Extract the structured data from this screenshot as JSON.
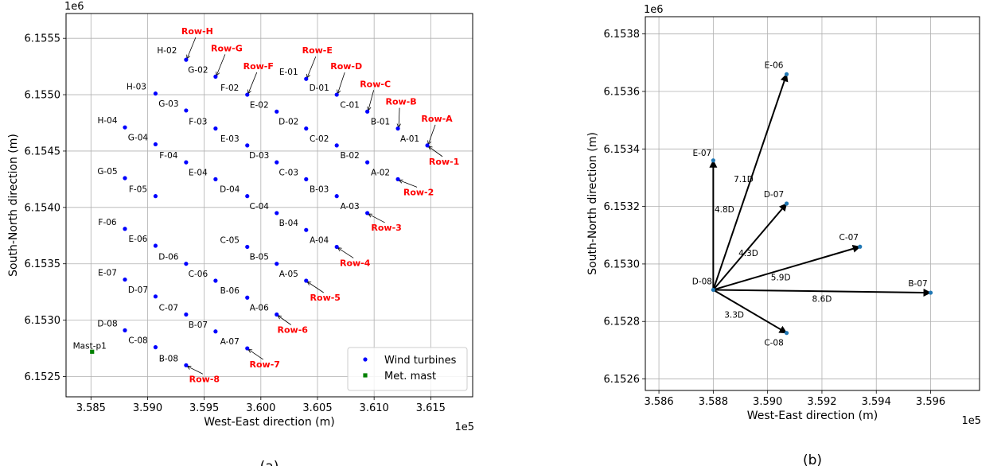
{
  "chart_data": [
    {
      "type": "scatter",
      "panel_label": "(a)",
      "xlabel": "West-East direction (m)",
      "ylabel": "South-North direction (m)",
      "x_offset_label": "1e5",
      "y_offset_label": "1e6",
      "xlim": [
        3.5828,
        3.6187
      ],
      "ylim": [
        6.15232,
        6.15572
      ],
      "xticks": [
        3.585,
        3.59,
        3.595,
        3.6,
        3.605,
        3.61,
        3.615
      ],
      "xtick_labels": [
        "3.585",
        "3.590",
        "3.595",
        "3.600",
        "3.605",
        "3.610",
        "3.615"
      ],
      "yticks": [
        6.1525,
        6.153,
        6.1535,
        6.154,
        6.1545,
        6.155,
        6.1555
      ],
      "ytick_labels": [
        "6.1525",
        "6.1530",
        "6.1535",
        "6.1540",
        "6.1545",
        "6.1550",
        "6.1555"
      ],
      "grid": true,
      "legend_position": "bottom-right",
      "legend": [
        {
          "label": "Wind turbines",
          "color": "#0000ff",
          "marker": "circle"
        },
        {
          "label": "Met. mast",
          "color": "#008000",
          "marker": "square"
        }
      ],
      "series": [
        {
          "name": "Wind turbines",
          "color": "#0000ff",
          "points": [
            {
              "label": "A-01",
              "x": 3.6147,
              "y": 6.15455
            },
            {
              "label": "A-02",
              "x": 3.6121,
              "y": 6.15425
            },
            {
              "label": "A-03",
              "x": 3.6094,
              "y": 6.15395
            },
            {
              "label": "A-04",
              "x": 3.6067,
              "y": 6.15365
            },
            {
              "label": "A-05",
              "x": 3.604,
              "y": 6.15335
            },
            {
              "label": "A-06",
              "x": 3.6014,
              "y": 6.15305
            },
            {
              "label": "A-07",
              "x": 3.5988,
              "y": 6.15275
            },
            {
              "label": "B-01",
              "x": 3.6121,
              "y": 6.1547
            },
            {
              "label": "B-02",
              "x": 3.6094,
              "y": 6.1544
            },
            {
              "label": "B-03",
              "x": 3.6067,
              "y": 6.1541
            },
            {
              "label": "B-04",
              "x": 3.604,
              "y": 6.1538
            },
            {
              "label": "B-05",
              "x": 3.6014,
              "y": 6.1535
            },
            {
              "label": "B-06",
              "x": 3.5988,
              "y": 6.1532
            },
            {
              "label": "B-07",
              "x": 3.596,
              "y": 6.1529
            },
            {
              "label": "B-08",
              "x": 3.5934,
              "y": 6.1526
            },
            {
              "label": "C-01",
              "x": 3.6094,
              "y": 6.15485
            },
            {
              "label": "C-02",
              "x": 3.6067,
              "y": 6.15455
            },
            {
              "label": "C-03",
              "x": 3.604,
              "y": 6.15425
            },
            {
              "label": "C-04",
              "x": 3.6014,
              "y": 6.15395
            },
            {
              "label": "C-05",
              "x": 3.5988,
              "y": 6.15365
            },
            {
              "label": "C-06",
              "x": 3.596,
              "y": 6.15335
            },
            {
              "label": "C-07",
              "x": 3.5934,
              "y": 6.15305
            },
            {
              "label": "C-08",
              "x": 3.5907,
              "y": 6.15276
            },
            {
              "label": "D-01",
              "x": 3.6067,
              "y": 6.155
            },
            {
              "label": "D-02",
              "x": 3.604,
              "y": 6.1547
            },
            {
              "label": "D-03",
              "x": 3.6014,
              "y": 6.1544
            },
            {
              "label": "D-04",
              "x": 3.5988,
              "y": 6.1541
            },
            {
              "label": "D-06",
              "x": 3.5934,
              "y": 6.1535
            },
            {
              "label": "D-07",
              "x": 3.5907,
              "y": 6.15321
            },
            {
              "label": "D-08",
              "x": 3.588,
              "y": 6.15291
            },
            {
              "label": "E-01",
              "x": 3.604,
              "y": 6.15514
            },
            {
              "label": "E-02",
              "x": 3.6014,
              "y": 6.15485
            },
            {
              "label": "E-03",
              "x": 3.5988,
              "y": 6.15455
            },
            {
              "label": "E-04",
              "x": 3.596,
              "y": 6.15425
            },
            {
              "label": "E-06",
              "x": 3.5907,
              "y": 6.15366
            },
            {
              "label": "E-07",
              "x": 3.588,
              "y": 6.15336
            },
            {
              "label": "F-02",
              "x": 3.5988,
              "y": 6.155
            },
            {
              "label": "F-03",
              "x": 3.596,
              "y": 6.1547
            },
            {
              "label": "F-04",
              "x": 3.5934,
              "y": 6.1544
            },
            {
              "label": "F-05",
              "x": 3.5907,
              "y": 6.1541
            },
            {
              "label": "F-06",
              "x": 3.588,
              "y": 6.15381
            },
            {
              "label": "G-02",
              "x": 3.596,
              "y": 6.15516
            },
            {
              "label": "G-03",
              "x": 3.5934,
              "y": 6.15486
            },
            {
              "label": "G-04",
              "x": 3.5907,
              "y": 6.15456
            },
            {
              "label": "G-05",
              "x": 3.588,
              "y": 6.15426
            },
            {
              "label": "H-02",
              "x": 3.5934,
              "y": 6.15531
            },
            {
              "label": "H-03",
              "x": 3.5907,
              "y": 6.15501
            },
            {
              "label": "H-04",
              "x": 3.588,
              "y": 6.15471
            }
          ]
        },
        {
          "name": "Met. mast",
          "color": "#008000",
          "points": [
            {
              "label": "Mast-p1",
              "x": 3.5851,
              "y": 6.15272
            }
          ]
        }
      ],
      "row_annotations": [
        {
          "text": "Row-A",
          "target": "A-01"
        },
        {
          "text": "Row-B",
          "target": "B-01"
        },
        {
          "text": "Row-C",
          "target": "C-01"
        },
        {
          "text": "Row-D",
          "target": "D-01"
        },
        {
          "text": "Row-E",
          "target": "E-01"
        },
        {
          "text": "Row-F",
          "target": "F-02"
        },
        {
          "text": "Row-G",
          "target": "G-02"
        },
        {
          "text": "Row-H",
          "target": "H-02"
        },
        {
          "text": "Row-1",
          "target": "A-01"
        },
        {
          "text": "Row-2",
          "target": "A-02"
        },
        {
          "text": "Row-3",
          "target": "A-03"
        },
        {
          "text": "Row-4",
          "target": "A-04"
        },
        {
          "text": "Row-5",
          "target": "A-05"
        },
        {
          "text": "Row-6",
          "target": "A-06"
        },
        {
          "text": "Row-7",
          "target": "A-07"
        },
        {
          "text": "Row-8",
          "target": "B-08"
        }
      ],
      "annotation_color": "#ff0000"
    },
    {
      "type": "scatter",
      "panel_label": "(b)",
      "xlabel": "West-East direction (m)",
      "ylabel": "South-North direction (m)",
      "x_offset_label": "1e5",
      "y_offset_label": "1e6",
      "xlim": [
        3.5855,
        3.5978
      ],
      "ylim": [
        6.15256,
        6.15386
      ],
      "xticks": [
        3.586,
        3.588,
        3.59,
        3.592,
        3.594,
        3.596
      ],
      "xtick_labels": [
        "3.586",
        "3.588",
        "3.590",
        "3.592",
        "3.594",
        "3.596"
      ],
      "yticks": [
        6.1526,
        6.1528,
        6.153,
        6.1532,
        6.1534,
        6.1536,
        6.1538
      ],
      "ytick_labels": [
        "6.1526",
        "6.1528",
        "6.1530",
        "6.1532",
        "6.1534",
        "6.1536",
        "6.1538"
      ],
      "grid": true,
      "origin": {
        "label": "D-08",
        "x": 3.588,
        "y": 6.15291
      },
      "point_color": "#1f77b4",
      "arrows": [
        {
          "target": "E-06",
          "x": 3.5907,
          "y": 6.15366,
          "distance_label": "7.1D"
        },
        {
          "target": "E-07",
          "x": 3.588,
          "y": 6.15336,
          "distance_label": "4.8D"
        },
        {
          "target": "D-07",
          "x": 3.5907,
          "y": 6.15321,
          "distance_label": "4.3D"
        },
        {
          "target": "C-07",
          "x": 3.5934,
          "y": 6.15306,
          "distance_label": "5.9D"
        },
        {
          "target": "B-07",
          "x": 3.596,
          "y": 6.1529,
          "distance_label": "8.6D"
        },
        {
          "target": "C-08",
          "x": 3.5907,
          "y": 6.15276,
          "distance_label": "3.3D"
        }
      ]
    }
  ]
}
